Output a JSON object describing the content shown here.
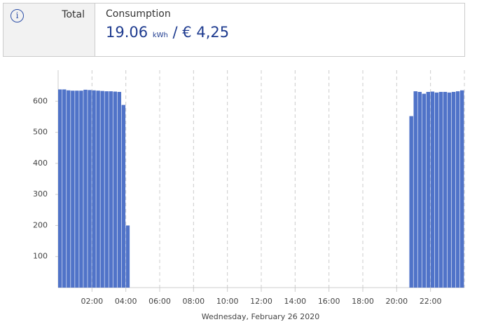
{
  "summary": {
    "label": "Total",
    "heading": "Consumption",
    "amount": "19.06",
    "unit": "kWh",
    "separator": "/",
    "cost": "€ 4,25"
  },
  "chart_data": {
    "type": "bar",
    "color": "#5073c8",
    "x": [
      0,
      0.25,
      0.5,
      0.75,
      1,
      1.25,
      1.5,
      1.75,
      2,
      2.25,
      2.5,
      2.75,
      3,
      3.25,
      3.5,
      3.75,
      4,
      20.75,
      21,
      21.25,
      21.5,
      21.75,
      22,
      22.25,
      22.5,
      22.75,
      23,
      23.25,
      23.5,
      23.75
    ],
    "values": [
      638,
      638,
      635,
      634,
      634,
      634,
      637,
      636,
      635,
      634,
      633,
      632,
      632,
      631,
      630,
      588,
      200,
      552,
      632,
      630,
      624,
      630,
      631,
      628,
      630,
      630,
      628,
      630,
      632,
      635
    ],
    "xlim": [
      0,
      24
    ],
    "ylim": [
      0,
      700
    ],
    "xticks": [
      {
        "value": 2,
        "label": "02:00"
      },
      {
        "value": 4,
        "label": "04:00"
      },
      {
        "value": 6,
        "label": "06:00"
      },
      {
        "value": 8,
        "label": "08:00"
      },
      {
        "value": 10,
        "label": "10:00"
      },
      {
        "value": 12,
        "label": "12:00"
      },
      {
        "value": 14,
        "label": "14:00"
      },
      {
        "value": 16,
        "label": "16:00"
      },
      {
        "value": 18,
        "label": "18:00"
      },
      {
        "value": 20,
        "label": "20:00"
      },
      {
        "value": 22,
        "label": "22:00"
      }
    ],
    "yticks": [
      100,
      200,
      300,
      400,
      500,
      600
    ],
    "xlabel": "Wednesday, February 26 2020",
    "grid": true
  }
}
